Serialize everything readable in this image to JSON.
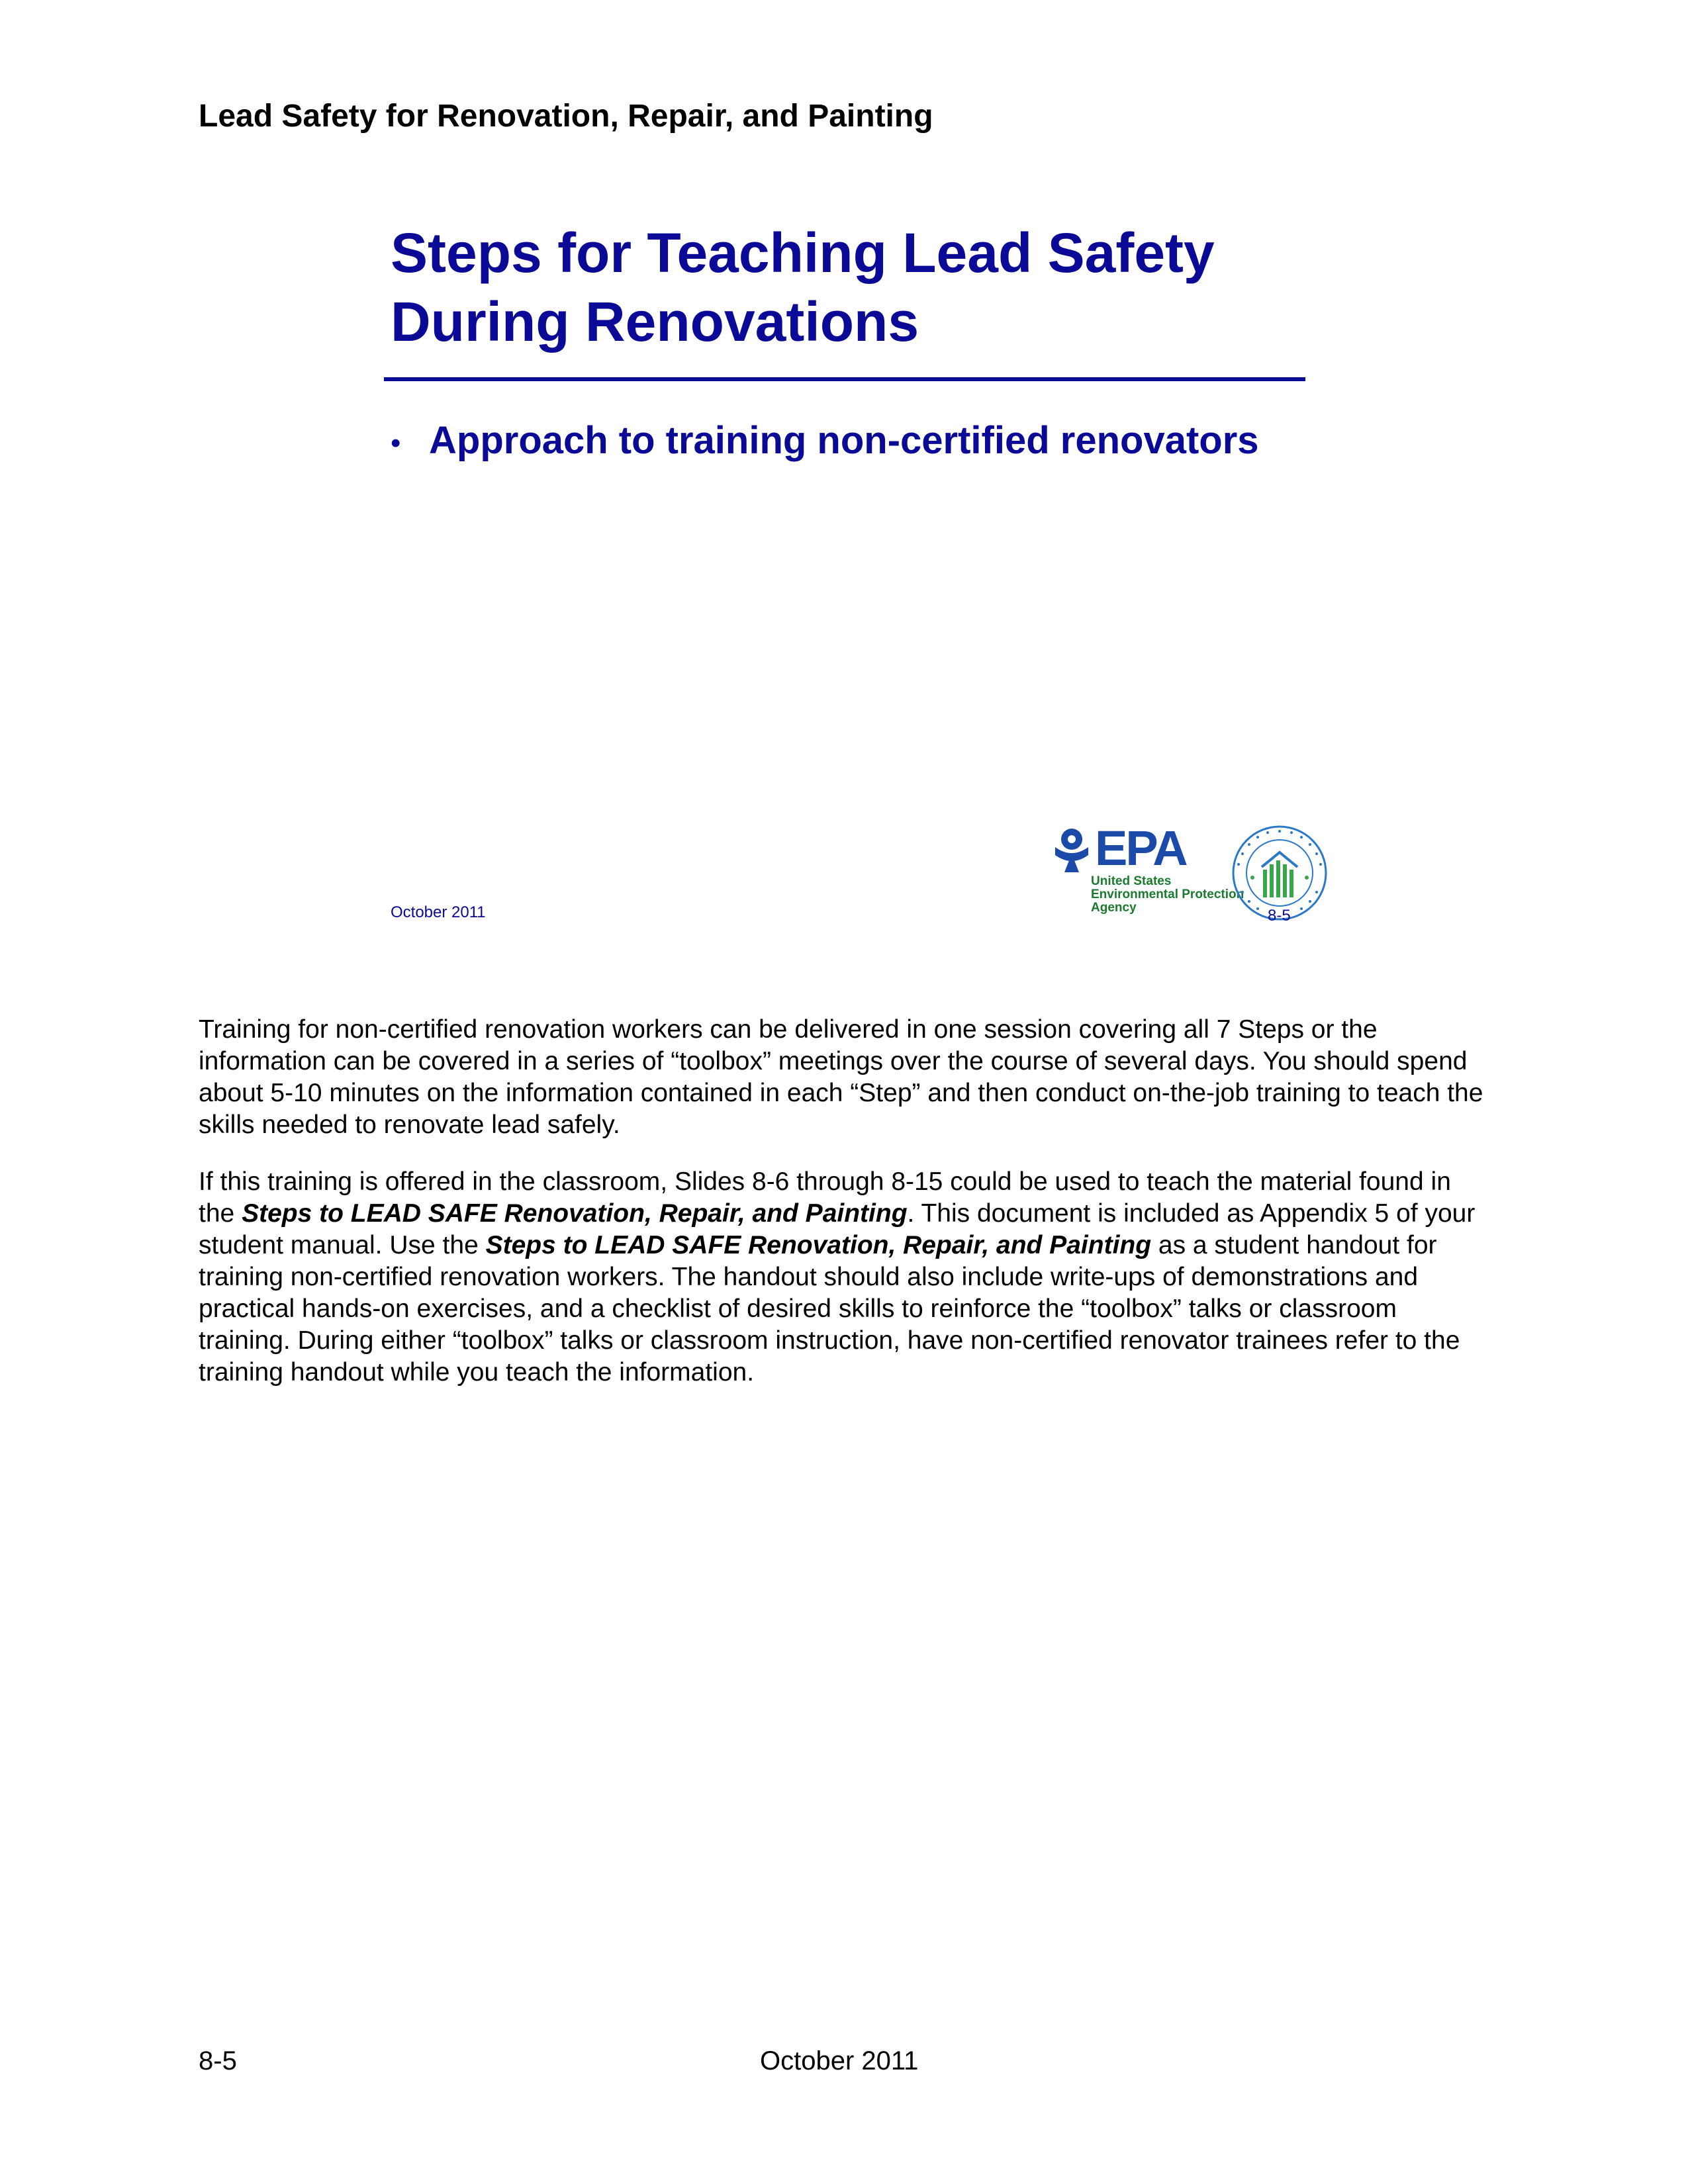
{
  "header": {
    "title": "Lead Safety for Renovation, Repair, and Painting"
  },
  "slide": {
    "title_line1": "Steps for Teaching Lead Safety",
    "title_line2": "During Renovations",
    "bullet_symbol": "•",
    "bullet": "Approach to training non-certified renovators",
    "footer_date": "October 2011",
    "footer_page": "8-5",
    "epa_logo": {
      "wordmark": "EPA",
      "line1": "United States",
      "line2": "Environmental Protection",
      "line3": "Agency",
      "icon": "epa-flower-icon"
    },
    "hud_logo": {
      "icon": "hud-seal-icon"
    }
  },
  "body": {
    "p1": "Training for non-certified renovation workers can be delivered in one session covering all 7 Steps or the information can be covered in a series of “toolbox” meetings over the course of several days. You should spend about 5-10 minutes on the information contained in each “Step” and then conduct on-the-job training to teach the skills needed to renovate lead safely.",
    "p2_a": "If this training is offered in the classroom, Slides 8-6 through 8-15 could be used to teach the material found in the ",
    "p2_b": "Steps to LEAD SAFE Renovation, Repair, and Painting",
    "p2_c": ". This document is included as Appendix 5 of your student manual. Use the ",
    "p2_d": "Steps to LEAD SAFE Renovation, Repair, and Painting",
    "p2_e": " as a student handout for training non-certified renovation workers. The handout should also include write-ups of demonstrations and practical hands-on exercises, and a checklist of desired skills to reinforce the “toolbox” talks or classroom training. During either “toolbox” talks or classroom instruction, have non-certified renovator trainees refer to the training handout while you teach the information."
  },
  "footer": {
    "page": "8-5",
    "date": "October 2011"
  },
  "colors": {
    "slide_blue": "#0a0a96",
    "epa_blue": "#1b4aa8",
    "epa_green": "#1a7a2e",
    "hud_blue": "#2a78c8",
    "hud_green": "#3aa64a"
  }
}
